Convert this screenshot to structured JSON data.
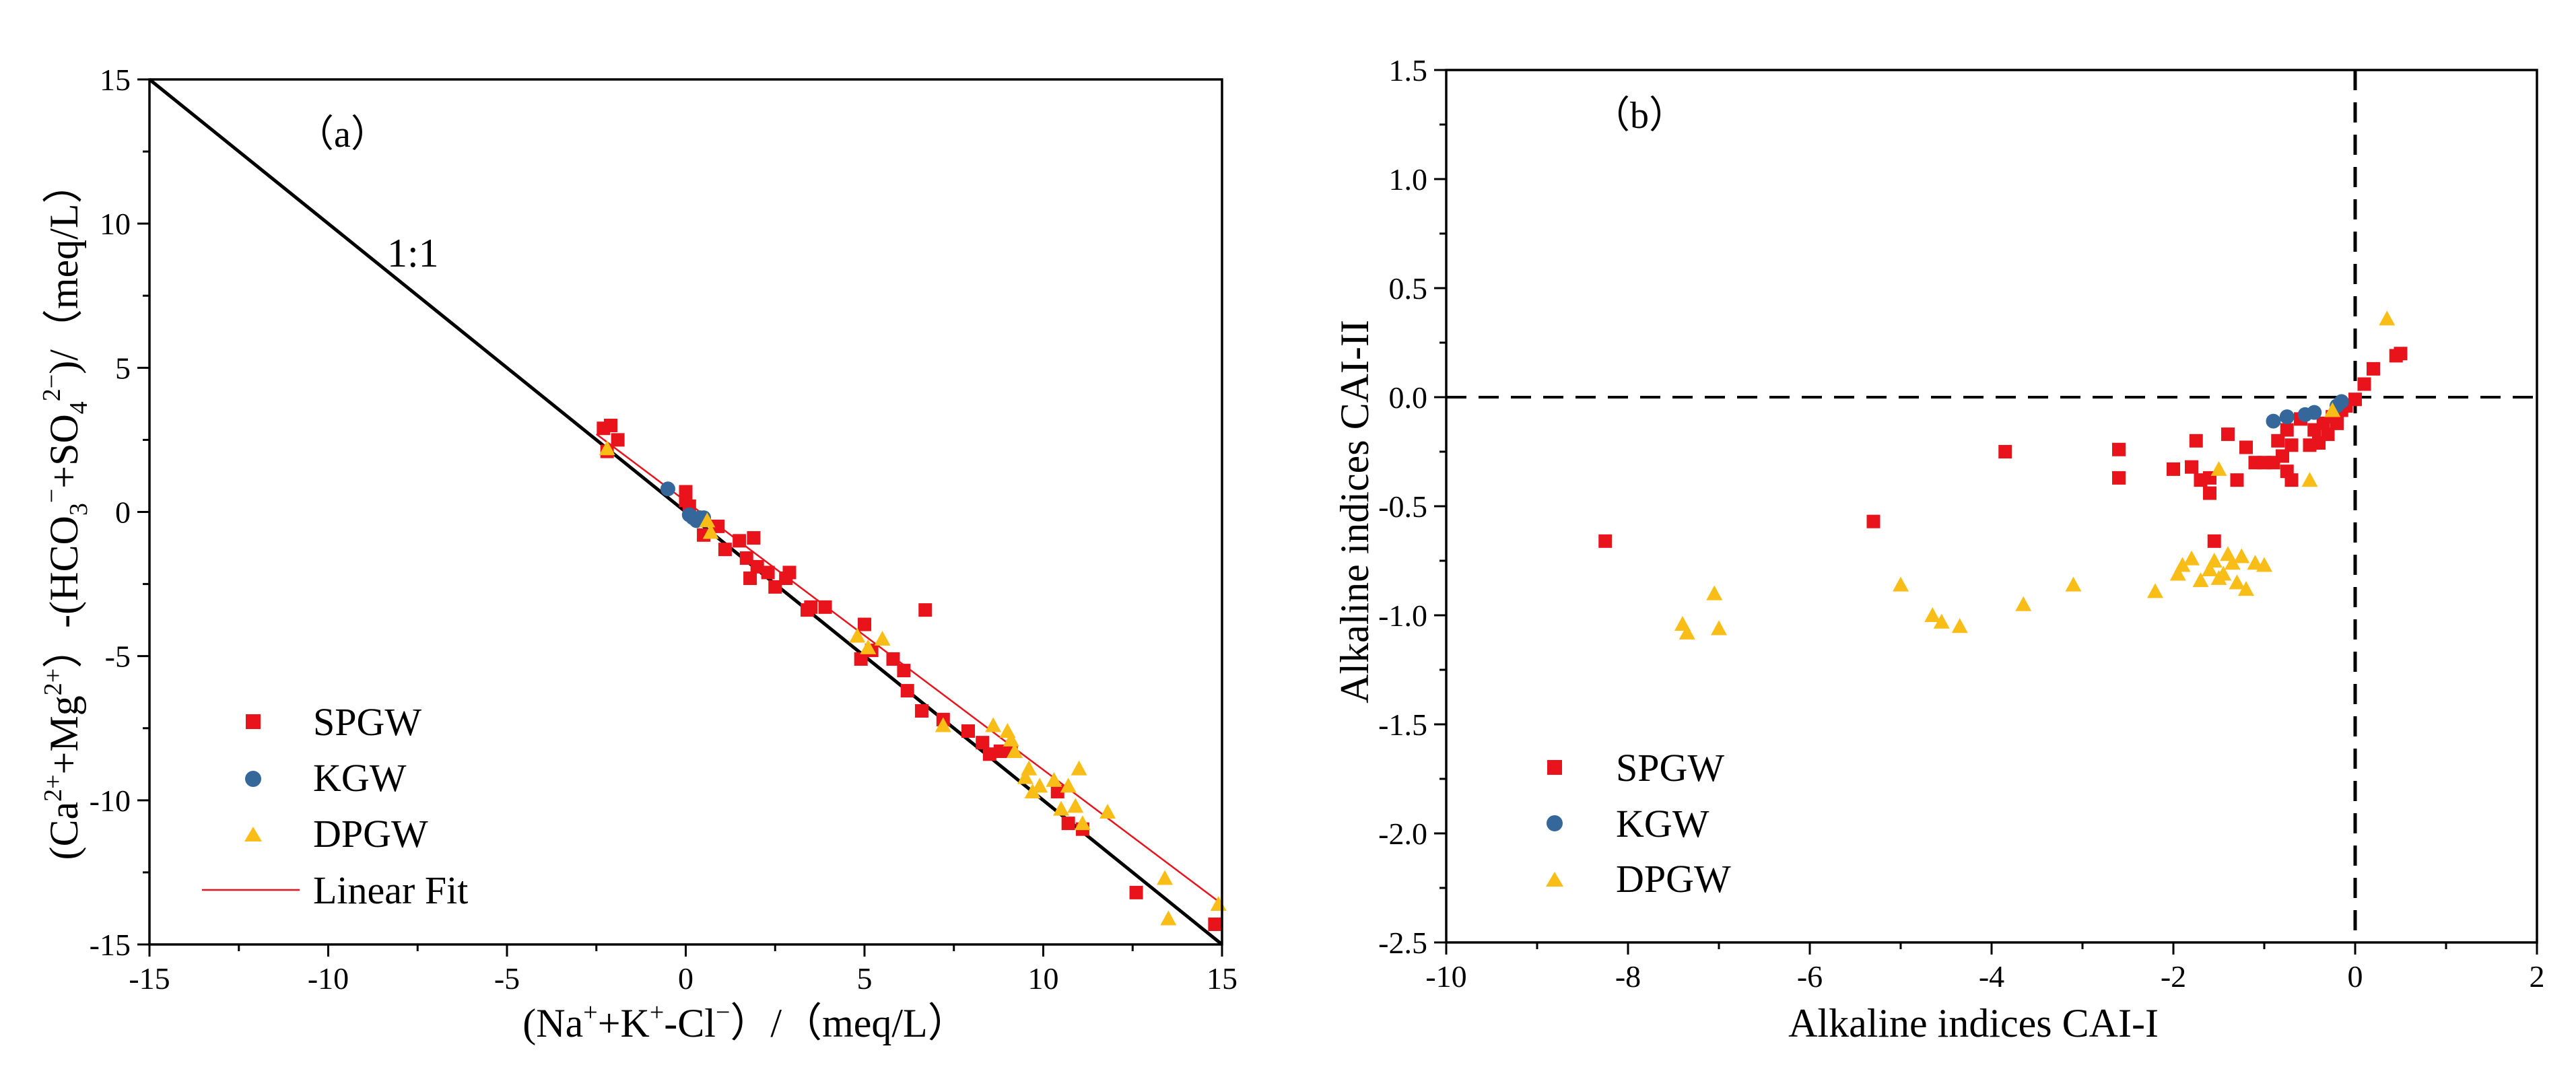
{
  "chart_data": [
    {
      "type": "scatter",
      "panel_label": "（a）",
      "xlabel_parts": [
        "(Na",
        "+",
        "+K",
        "+",
        "-Cl",
        "−",
        "）/（meq/L）"
      ],
      "ylabel_parts": [
        "(Ca",
        "2+",
        "+Mg",
        "2+",
        "）-(HCO",
        "3",
        "−",
        "+SO",
        "4",
        "2−",
        ")/（meq/L）"
      ],
      "xlim": [
        -15,
        15
      ],
      "ylim": [
        -15,
        15
      ],
      "xticks": [
        -15,
        -10,
        -5,
        0,
        5,
        10,
        15
      ],
      "yticks": [
        -15,
        -10,
        -5,
        0,
        5,
        10,
        15
      ],
      "xtick_labels": [
        "-15",
        "-10",
        "-5",
        "0",
        "5",
        "10",
        "15"
      ],
      "ytick_labels": [
        "-15",
        "-10",
        "-5",
        "0",
        "5",
        "10",
        "15"
      ],
      "reference_line": {
        "label": "1:1",
        "from": [
          -15,
          15
        ],
        "to": [
          15,
          -15
        ]
      },
      "legend_position": "bottom-left",
      "series": [
        {
          "name": "SPGW",
          "marker": "square",
          "color": "#e8131b",
          "points": [
            [
              -2.3,
              2.9
            ],
            [
              -2.2,
              2.1
            ],
            [
              -2.1,
              3.0
            ],
            [
              -1.9,
              2.5
            ],
            [
              0.0,
              0.7
            ],
            [
              0.0,
              0.4
            ],
            [
              0.1,
              0.2
            ],
            [
              0.5,
              -0.8
            ],
            [
              0.9,
              -0.5
            ],
            [
              1.1,
              -1.3
            ],
            [
              1.5,
              -1.0
            ],
            [
              1.7,
              -1.6
            ],
            [
              1.8,
              -2.3
            ],
            [
              1.9,
              -0.9
            ],
            [
              2.0,
              -1.9
            ],
            [
              2.3,
              -2.1
            ],
            [
              2.5,
              -2.6
            ],
            [
              2.8,
              -2.3
            ],
            [
              2.9,
              -2.1
            ],
            [
              3.4,
              -3.4
            ],
            [
              3.5,
              -3.3
            ],
            [
              3.9,
              -3.3
            ],
            [
              4.9,
              -5.1
            ],
            [
              5.0,
              -3.9
            ],
            [
              5.2,
              -4.8
            ],
            [
              5.8,
              -5.1
            ],
            [
              6.1,
              -5.5
            ],
            [
              6.2,
              -6.2
            ],
            [
              6.6,
              -6.9
            ],
            [
              6.7,
              -3.4
            ],
            [
              7.2,
              -7.2
            ],
            [
              7.9,
              -7.6
            ],
            [
              8.3,
              -8.0
            ],
            [
              8.5,
              -8.4
            ],
            [
              8.8,
              -8.3
            ],
            [
              9.1,
              -8.3
            ],
            [
              10.4,
              -9.7
            ],
            [
              10.7,
              -10.8
            ],
            [
              11.1,
              -11.0
            ],
            [
              12.6,
              -13.2
            ],
            [
              14.8,
              -14.3
            ]
          ]
        },
        {
          "name": "KGW",
          "marker": "circle",
          "color": "#35679b",
          "points": [
            [
              -0.5,
              0.8
            ],
            [
              0.1,
              -0.1
            ],
            [
              0.2,
              -0.2
            ],
            [
              0.3,
              -0.3
            ],
            [
              0.4,
              -0.2
            ],
            [
              0.5,
              -0.2
            ]
          ]
        },
        {
          "name": "DPGW",
          "marker": "triangle",
          "color": "#f9bd18",
          "points": [
            [
              -2.2,
              2.2
            ],
            [
              0.6,
              -0.3
            ],
            [
              0.7,
              -0.7
            ],
            [
              4.8,
              -4.3
            ],
            [
              5.1,
              -4.7
            ],
            [
              5.5,
              -4.4
            ],
            [
              7.2,
              -7.4
            ],
            [
              8.6,
              -7.4
            ],
            [
              9.0,
              -7.6
            ],
            [
              9.1,
              -7.9
            ],
            [
              9.2,
              -8.3
            ],
            [
              9.5,
              -9.2
            ],
            [
              9.6,
              -8.9
            ],
            [
              9.7,
              -9.7
            ],
            [
              9.9,
              -9.5
            ],
            [
              10.3,
              -9.3
            ],
            [
              10.5,
              -10.3
            ],
            [
              10.7,
              -9.5
            ],
            [
              10.9,
              -10.2
            ],
            [
              11.0,
              -8.9
            ],
            [
              11.1,
              -10.8
            ],
            [
              11.8,
              -10.4
            ],
            [
              13.4,
              -12.7
            ],
            [
              13.5,
              -14.1
            ],
            [
              14.9,
              -13.6
            ]
          ]
        }
      ],
      "fit_line": {
        "name": "Linear Fit",
        "color": "#e8131b",
        "from": [
          -2.5,
          2.7
        ],
        "to": [
          15,
          -13.6
        ]
      }
    },
    {
      "type": "scatter",
      "panel_label": "（b）",
      "xlabel": "Alkaline indices CAI-I",
      "ylabel": "Alkaline indices CAI-II",
      "xlim": [
        -10,
        2
      ],
      "ylim": [
        -2.5,
        1.5
      ],
      "xticks": [
        -10,
        -8,
        -6,
        -4,
        -2,
        0,
        2
      ],
      "yticks": [
        -2.5,
        -2.0,
        -1.5,
        -1.0,
        -0.5,
        0.0,
        0.5,
        1.0,
        1.5
      ],
      "xtick_labels": [
        "-10",
        "-8",
        "-6",
        "-4",
        "-2",
        "0",
        "2"
      ],
      "ytick_labels": [
        "-2.5",
        "-2.0",
        "-1.5",
        "-1.0",
        "-0.5",
        "0.0",
        "0.5",
        "1.0",
        "1.5"
      ],
      "reference_lines": [
        "x = 0 (dashed)",
        "y = 0 (dashed)"
      ],
      "legend_position": "bottom-left",
      "series": [
        {
          "name": "SPGW",
          "marker": "square",
          "color": "#e8131b",
          "points": [
            [
              -8.25,
              -0.66
            ],
            [
              -5.3,
              -0.57
            ],
            [
              -3.85,
              -0.25
            ],
            [
              -2.6,
              -0.37
            ],
            [
              -2.6,
              -0.24
            ],
            [
              -2.0,
              -0.33
            ],
            [
              -1.8,
              -0.32
            ],
            [
              -1.75,
              -0.2
            ],
            [
              -1.7,
              -0.38
            ],
            [
              -1.6,
              -0.37
            ],
            [
              -1.6,
              -0.44
            ],
            [
              -1.55,
              -0.66
            ],
            [
              -1.4,
              -0.17
            ],
            [
              -1.3,
              -0.38
            ],
            [
              -1.2,
              -0.23
            ],
            [
              -1.1,
              -0.3
            ],
            [
              -1.0,
              -0.3
            ],
            [
              -0.9,
              -0.3
            ],
            [
              -0.85,
              -0.2
            ],
            [
              -0.8,
              -0.27
            ],
            [
              -0.75,
              -0.34
            ],
            [
              -0.75,
              -0.15
            ],
            [
              -0.7,
              -0.38
            ],
            [
              -0.7,
              -0.22
            ],
            [
              -0.6,
              -0.1
            ],
            [
              -0.5,
              -0.22
            ],
            [
              -0.45,
              -0.15
            ],
            [
              -0.4,
              -0.21
            ],
            [
              -0.35,
              -0.12
            ],
            [
              -0.3,
              -0.17
            ],
            [
              -0.25,
              -0.09
            ],
            [
              -0.2,
              -0.12
            ],
            [
              -0.15,
              -0.06
            ],
            [
              -0.1,
              -0.04
            ],
            [
              0.0,
              -0.01
            ],
            [
              0.1,
              0.06
            ],
            [
              0.2,
              0.13
            ],
            [
              0.45,
              0.19
            ],
            [
              0.5,
              0.2
            ]
          ]
        },
        {
          "name": "KGW",
          "marker": "circle",
          "color": "#35679b",
          "points": [
            [
              -0.9,
              -0.11
            ],
            [
              -0.75,
              -0.09
            ],
            [
              -0.55,
              -0.08
            ],
            [
              -0.45,
              -0.07
            ],
            [
              -0.2,
              -0.04
            ],
            [
              -0.15,
              -0.02
            ]
          ]
        },
        {
          "name": "DPGW",
          "marker": "triangle",
          "color": "#f9bd18",
          "points": [
            [
              -7.4,
              -1.04
            ],
            [
              -7.35,
              -1.08
            ],
            [
              -7.05,
              -0.9
            ],
            [
              -7.0,
              -1.06
            ],
            [
              -5.0,
              -0.86
            ],
            [
              -4.65,
              -1.0
            ],
            [
              -4.55,
              -1.03
            ],
            [
              -4.35,
              -1.05
            ],
            [
              -3.65,
              -0.95
            ],
            [
              -3.1,
              -0.86
            ],
            [
              -2.2,
              -0.89
            ],
            [
              -1.95,
              -0.81
            ],
            [
              -1.9,
              -0.77
            ],
            [
              -1.8,
              -0.74
            ],
            [
              -1.7,
              -0.84
            ],
            [
              -1.6,
              -0.79
            ],
            [
              -1.55,
              -0.75
            ],
            [
              -1.5,
              -0.83
            ],
            [
              -1.45,
              -0.81
            ],
            [
              -1.4,
              -0.72
            ],
            [
              -1.35,
              -0.76
            ],
            [
              -1.3,
              -0.85
            ],
            [
              -1.25,
              -0.73
            ],
            [
              -1.2,
              -0.88
            ],
            [
              -1.1,
              -0.76
            ],
            [
              -1.0,
              -0.77
            ],
            [
              -1.5,
              -0.33
            ],
            [
              -0.5,
              -0.38
            ],
            [
              -0.25,
              -0.06
            ],
            [
              0.35,
              0.36
            ]
          ]
        }
      ]
    }
  ]
}
